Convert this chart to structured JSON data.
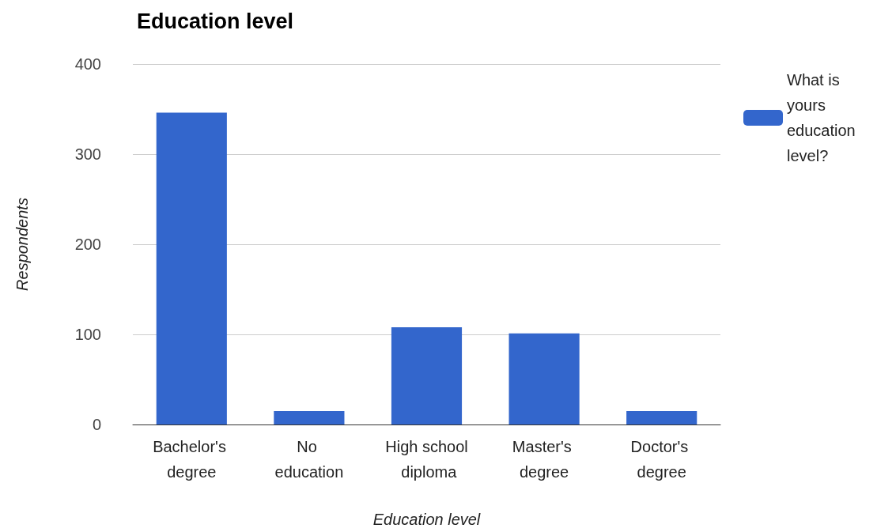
{
  "chart_data": {
    "type": "bar",
    "title": "Education level",
    "xlabel": "Education level",
    "ylabel": "Respondents",
    "categories": [
      "Bachelor's degree",
      "No education",
      "High school diploma",
      "Master's degree",
      "Doctor's degree"
    ],
    "series": [
      {
        "name": "What is yours education level?",
        "color": "#3366cc",
        "values": [
          346,
          15,
          108,
          101,
          15
        ]
      }
    ],
    "ylim": [
      0,
      400
    ],
    "yticks": [
      0,
      100,
      200,
      300,
      400
    ],
    "grid": "y",
    "legend": "top right"
  }
}
